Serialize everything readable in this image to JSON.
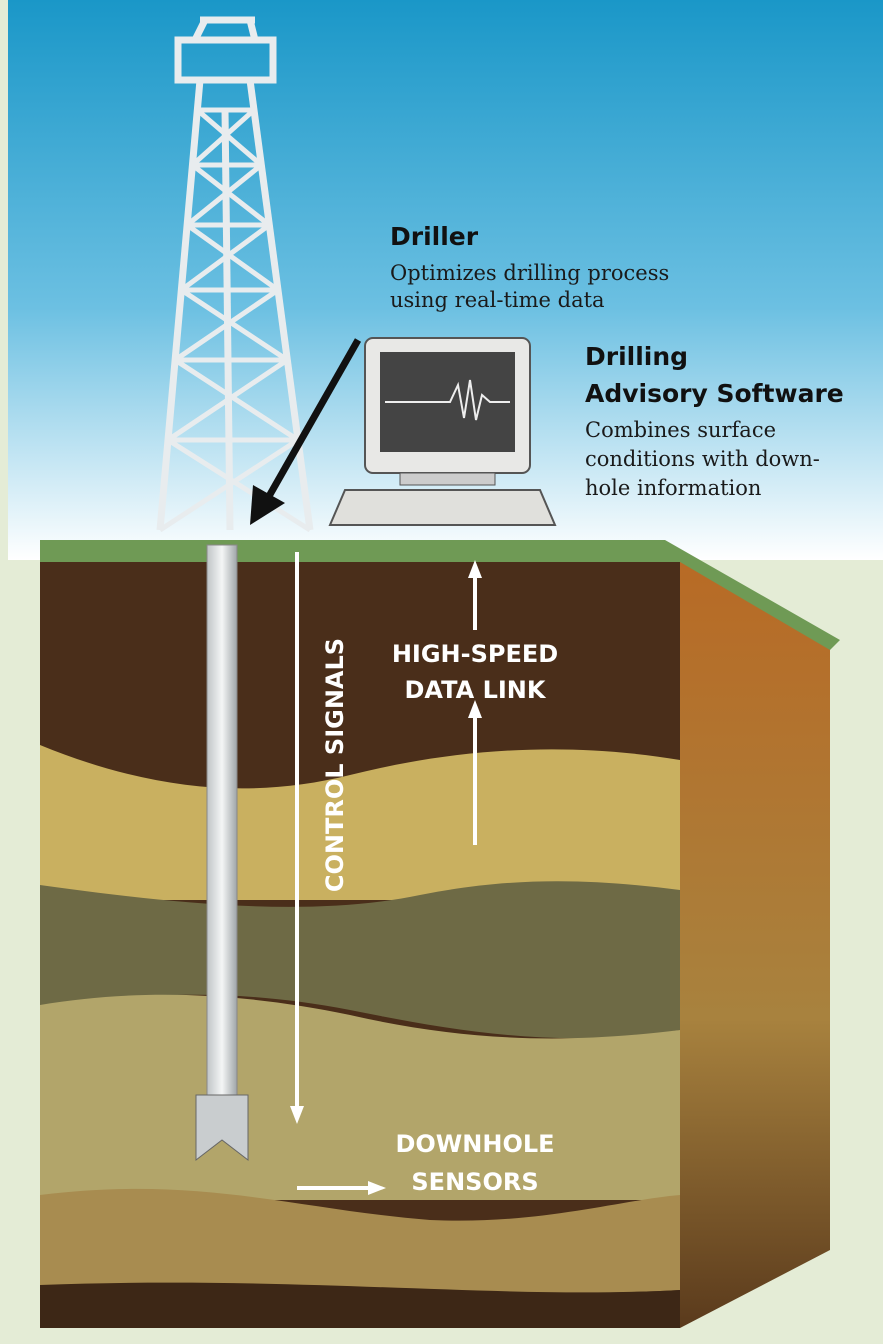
{
  "driller": {
    "title": "Driller",
    "description": [
      "Optimizes drilling process",
      "using real-time data"
    ]
  },
  "software": {
    "title": [
      "Drilling",
      "Advisory Software"
    ],
    "description": [
      "Combines surface",
      "conditions with down-",
      "hole information"
    ]
  },
  "data_link": {
    "label": [
      "HIGH-SPEED",
      "DATA LINK"
    ]
  },
  "control_signals": {
    "label": "CONTROL SIGNALS"
  },
  "downhole_sensors": {
    "label": [
      "DOWNHOLE",
      "SENSORS"
    ]
  }
}
